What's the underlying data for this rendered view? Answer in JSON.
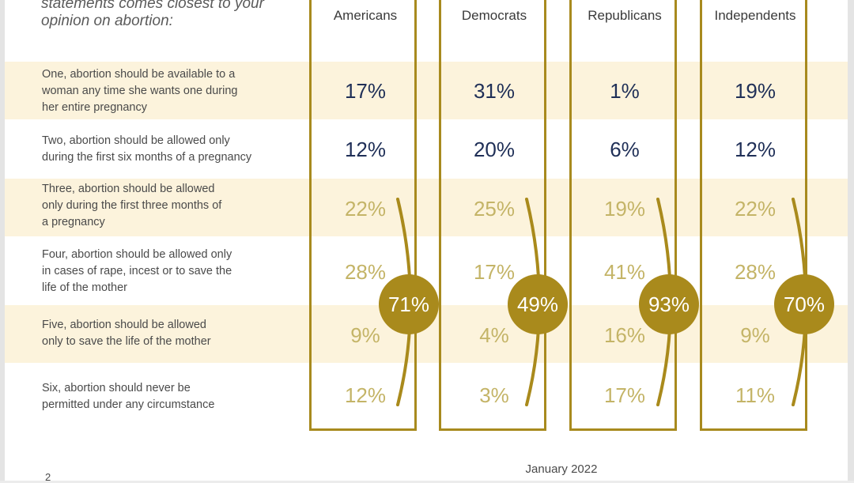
{
  "heading": [
    "statements comes closest to your",
    "opinion on abortion:"
  ],
  "footer": {
    "date": "January 2022",
    "page_number": "2"
  },
  "colors": {
    "dark_value": "#1f2f57",
    "light_value": "#c4b467",
    "accent_gold": "#a98a1c",
    "band": "#fcf3dc"
  },
  "chart_data": {
    "type": "table",
    "columns": [
      "Americans",
      "Democrats",
      "Republicans",
      "Independents"
    ],
    "rows": [
      {
        "label": [
          "One, abortion should be available to a",
          "woman any time she wants one during",
          "her entire pregnancy"
        ],
        "values": [
          "17%",
          "31%",
          "1%",
          "19%"
        ]
      },
      {
        "label": [
          "Two, abortion should be allowed only",
          "during the first six months of a pregnancy"
        ],
        "values": [
          "12%",
          "20%",
          "6%",
          "12%"
        ]
      },
      {
        "label": [
          "Three, abortion should be allowed",
          "only during the first three months of",
          "a pregnancy"
        ],
        "values": [
          "22%",
          "25%",
          "19%",
          "22%"
        ]
      },
      {
        "label": [
          "Four, abortion should be allowed only",
          "in cases of rape, incest or to save the",
          "life of the mother"
        ],
        "values": [
          "28%",
          "17%",
          "41%",
          "28%"
        ]
      },
      {
        "label": [
          "Five, abortion should be allowed",
          "only to save the life of the mother"
        ],
        "values": [
          "9%",
          "4%",
          "16%",
          "9%"
        ]
      },
      {
        "label": [
          "Six, abortion should never be",
          "permitted under any circumstance"
        ],
        "values": [
          "12%",
          "3%",
          "17%",
          "11%"
        ]
      }
    ],
    "highlight_rows": [
      2,
      3,
      4,
      5
    ],
    "totals": [
      "71%",
      "49%",
      "93%",
      "70%"
    ]
  }
}
